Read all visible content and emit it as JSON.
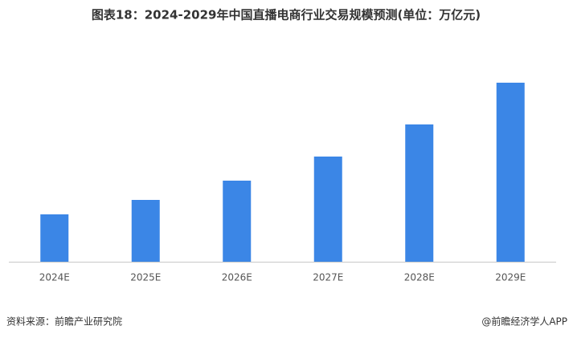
{
  "chart_data": {
    "type": "bar",
    "title": "图表18：2024-2029年中国直播电商行业交易规模预测(单位：万亿元)",
    "categories": [
      "2024E",
      "2025E",
      "2026E",
      "2027E",
      "2028E",
      "2029E"
    ],
    "values": [
      5.9,
      7.7,
      10.1,
      13.1,
      17.1,
      22.3
    ],
    "color": "#3b86e6",
    "source": "资料来源：前瞻产业研究院",
    "credit": "@前瞻经济学人APP"
  }
}
